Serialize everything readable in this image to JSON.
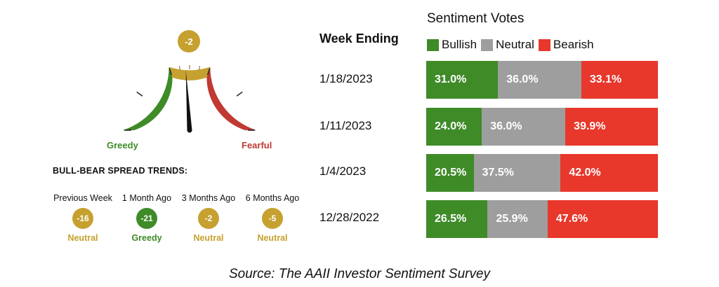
{
  "gauge": {
    "value": -2,
    "value_label": "-2",
    "left_label": "Greedy",
    "right_label": "Fearful",
    "min": -50,
    "max": 50,
    "colors": {
      "greedy": "#3e8b28",
      "neutral": "#c6a12f",
      "fearful": "#c03a33"
    }
  },
  "trends": {
    "title": "BULL-BEAR SPREAD TRENDS:",
    "items": [
      {
        "period": "Previous Week",
        "value": "-16",
        "status": "Neutral",
        "color": "#c6a12f"
      },
      {
        "period": "1 Month Ago",
        "value": "-21",
        "status": "Greedy",
        "color": "#3e8b28"
      },
      {
        "period": "3 Months Ago",
        "value": "-2",
        "status": "Neutral",
        "color": "#c6a12f"
      },
      {
        "period": "6 Months Ago",
        "value": "-5",
        "status": "Neutral",
        "color": "#c6a12f"
      }
    ]
  },
  "chart_data": {
    "type": "bar",
    "stacked": true,
    "orientation": "horizontal",
    "title": "Sentiment Votes",
    "row_header": "Week Ending",
    "categories": [
      "1/18/2023",
      "1/11/2023",
      "1/4/2023",
      "12/28/2022"
    ],
    "series": [
      {
        "name": "Bullish",
        "color": "#3e8b28",
        "values": [
          31.0,
          24.0,
          20.5,
          26.5
        ],
        "labels": [
          "31.0%",
          "24.0%",
          "20.5%",
          "26.5%"
        ]
      },
      {
        "name": "Neutral",
        "color": "#9e9e9e",
        "values": [
          36.0,
          36.0,
          37.5,
          25.9
        ],
        "labels": [
          "36.0%",
          "36.0%",
          "37.5%",
          "25.9%"
        ]
      },
      {
        "name": "Bearish",
        "color": "#e8372b",
        "values": [
          33.1,
          39.9,
          42.0,
          47.6
        ],
        "labels": [
          "33.1%",
          "39.9%",
          "42.0%",
          "47.6%"
        ]
      }
    ]
  },
  "source": "Source: The AAII Investor Sentiment Survey"
}
